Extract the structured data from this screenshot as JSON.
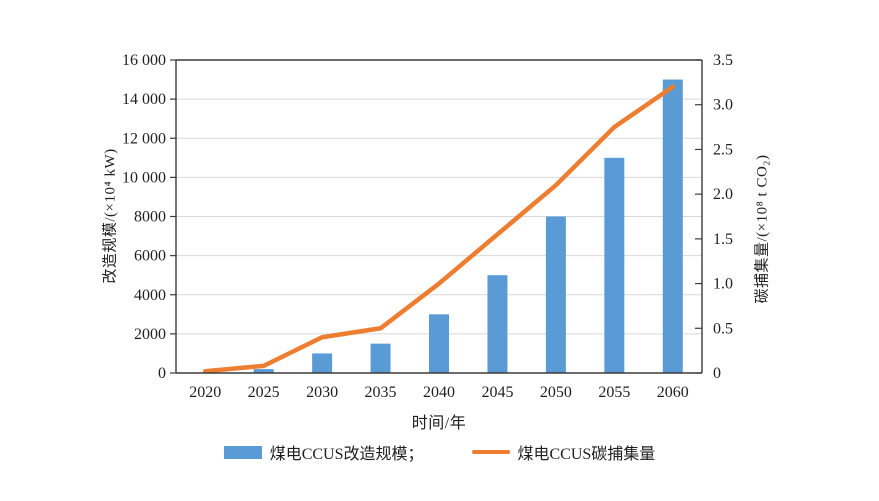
{
  "chart_data": {
    "type": "combo-bar-line",
    "categories": [
      "2020",
      "2025",
      "2030",
      "2035",
      "2040",
      "2045",
      "2050",
      "2055",
      "2060"
    ],
    "series": [
      {
        "name": "煤电CCUS改造规模",
        "type": "bar",
        "axis": "left",
        "color": "#5B9BD5",
        "values": [
          0,
          200,
          1000,
          1500,
          3000,
          5000,
          8000,
          11000,
          15000
        ]
      },
      {
        "name": "煤电CCUS碳捕集量",
        "type": "line",
        "axis": "right",
        "color": "#ED7D31",
        "values": [
          0.02,
          0.08,
          0.4,
          0.5,
          1.0,
          1.55,
          2.1,
          2.75,
          3.2
        ]
      }
    ],
    "left_axis": {
      "label": "改造规模/(×10⁴ kW)",
      "min": 0,
      "max": 16000,
      "tick_step": 2000,
      "tick_labels": [
        "0",
        "2000",
        "4000",
        "6000",
        "8000",
        "10 000",
        "12 000",
        "14 000",
        "16 000"
      ]
    },
    "right_axis": {
      "label": "碳捕集量/(×10⁸ t CO₂)",
      "min": 0,
      "max": 3.5,
      "tick_step": 0.5,
      "tick_labels": [
        "0",
        "0.5",
        "1.0",
        "1.5",
        "2.0",
        "2.5",
        "3.0",
        "3.5"
      ]
    },
    "x_axis": {
      "label": "时间/年"
    },
    "legend": [
      {
        "label": "煤电CCUS改造规模；",
        "swatch": "bar"
      },
      {
        "label": "煤电CCUS碳捕集量",
        "swatch": "line"
      }
    ],
    "legend_position": "bottom",
    "grid": true,
    "colors": {
      "grid": "#D9D9D9",
      "axis": "#3b3b3b"
    }
  }
}
